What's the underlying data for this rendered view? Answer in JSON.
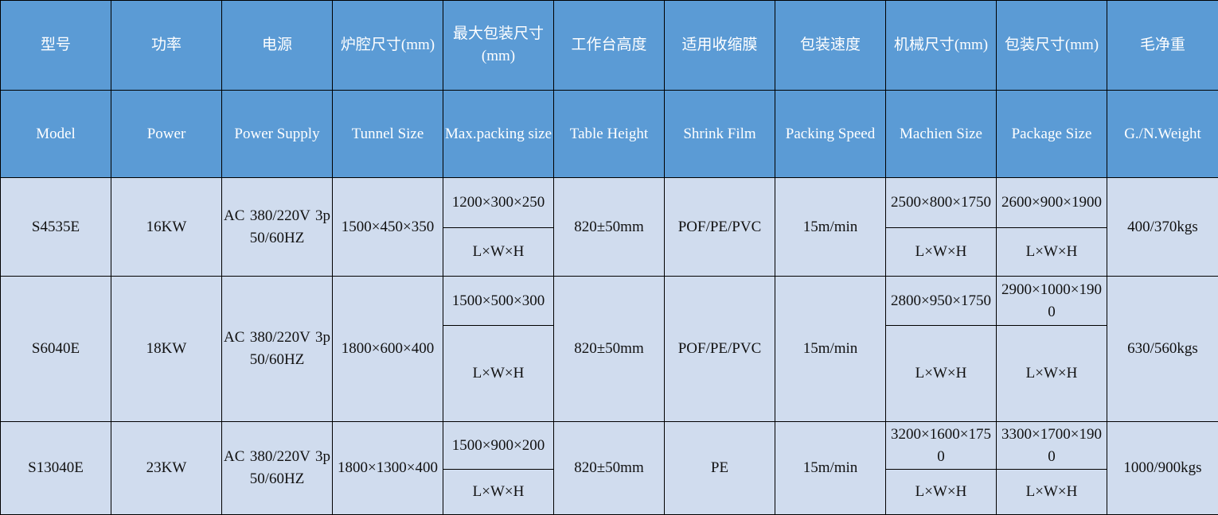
{
  "header_cn": [
    "型号",
    "功率",
    "电源",
    "炉腔尺寸(mm)",
    "最大包装尺寸 (mm)",
    "工作台高度",
    "适用收缩膜",
    "包装速度",
    "机械尺寸(mm)",
    "包装尺寸(mm)",
    "毛净重"
  ],
  "header_en": [
    "Model",
    "Power",
    "Power Supply",
    "Tunnel Size",
    "Max.packing size",
    "Table Height",
    "Shrink Film",
    "Packing Speed",
    "Machien Size",
    "Package Size",
    "G./N.Weight"
  ],
  "rows": [
    {
      "model": "S4535E",
      "power": "16KW",
      "supply": "AC 380/220V 3p 50/60HZ",
      "tunnel": "1500×450×350",
      "max_pack": "1200×300×250",
      "max_pack_unit": "L×W×H",
      "table_height": "820±50mm",
      "film": "POF/PE/PVC",
      "speed": "15m/min",
      "machine": "2500×800×1750",
      "machine_unit": "L×W×H",
      "package": "2600×900×1900",
      "package_unit": "L×W×H",
      "weight": "400/370kgs"
    },
    {
      "model": "S6040E",
      "power": "18KW",
      "supply": "AC 380/220V 3p 50/60HZ",
      "tunnel": "1800×600×400",
      "max_pack": "1500×500×300",
      "max_pack_unit": "L×W×H",
      "table_height": "820±50mm",
      "film": "POF/PE/PVC",
      "speed": "15m/min",
      "machine": "2800×950×1750",
      "machine_unit": "L×W×H",
      "package": "2900×1000×1900",
      "package_unit": "L×W×H",
      "weight": "630/560kgs"
    },
    {
      "model": "S13040E",
      "power": "23KW",
      "supply": "AC 380/220V 3p 50/60HZ",
      "tunnel": "1800×1300×400",
      "max_pack": "1500×900×200",
      "max_pack_unit": "L×W×H",
      "table_height": "820±50mm",
      "film": "PE",
      "speed": "15m/min",
      "machine": "3200×1600×1750",
      "machine_unit": "L×W×H",
      "package": "3300×1700×1900",
      "package_unit": "L×W×H",
      "weight": "1000/900kgs"
    }
  ],
  "colors": {
    "header_bg": "#5b9bd5",
    "body_bg": "#d0dcee"
  }
}
